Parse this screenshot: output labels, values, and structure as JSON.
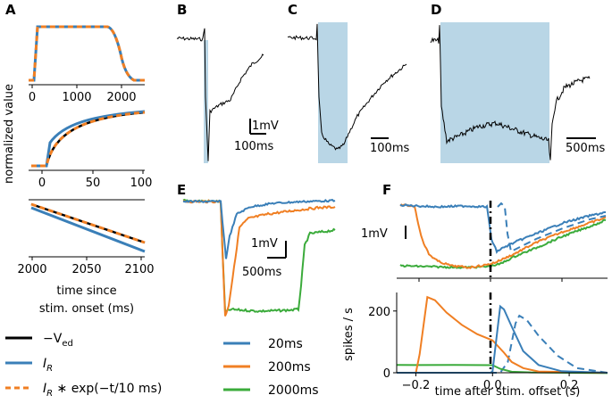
{
  "panel_labels": {
    "A": "A",
    "B": "B",
    "C": "C",
    "D": "D",
    "E": "E",
    "F": "F"
  },
  "colors": {
    "blue": "#3a7fb8",
    "orange": "#f07f23",
    "green": "#3bab3b",
    "shade": "#b9d6e6",
    "black": "#000000"
  },
  "panel_A": {
    "ylabel": "normalized value",
    "xlabel_line1": "time since",
    "xlabel_line2": "stim. onset (ms)",
    "top_ticks": [
      "0",
      "1000",
      "2000"
    ],
    "mid_ticks": [
      "0",
      "50",
      "100"
    ],
    "bot_ticks": [
      "2000",
      "2050",
      "2100"
    ],
    "legend": [
      {
        "label": "−V",
        "sub": "ed",
        "style": "solid",
        "color": "#000000",
        "name": "neg-v-ed"
      },
      {
        "label": "I",
        "sub": "R",
        "style": "solid",
        "color": "#3a7fb8",
        "name": "i-r"
      },
      {
        "label": "I",
        "sub": "R",
        "rest": " ∗ exp(−t/10 ms)",
        "style": "dashed",
        "color": "#f07f23",
        "name": "i-r-exp"
      }
    ]
  },
  "scalebars": {
    "B_mv": "1mV",
    "B_ms": "100ms",
    "C_ms": "100ms",
    "D_ms": "500ms",
    "E_mv": "1mV",
    "E_ms": "500ms",
    "F_mv": "1mV"
  },
  "panel_E": {
    "legend": [
      {
        "label": "20ms",
        "color": "#3a7fb8"
      },
      {
        "label": "200ms",
        "color": "#f07f23"
      },
      {
        "label": "2000ms",
        "color": "#3bab3b"
      }
    ]
  },
  "chart_data": {
    "type": "line",
    "title": "",
    "xlabel": "time after stim. offset (s)",
    "ylabel": "spikes / s",
    "xlim": [
      -0.25,
      0.3
    ],
    "ylim": [
      0,
      260
    ],
    "xticks": [
      "−0.2",
      "0.0",
      "0.2"
    ],
    "yticks": [
      "0",
      "200"
    ],
    "series": [
      {
        "name": "20ms",
        "x": [
          -0.25,
          -0.05,
          -0.005,
          0.0,
          0.01,
          0.02,
          0.03,
          0.05,
          0.08,
          0.12,
          0.18,
          0.3
        ],
        "values": [
          0,
          0,
          0,
          5,
          110,
          215,
          205,
          150,
          70,
          25,
          5,
          0
        ]
      },
      {
        "name": "200ms",
        "x": [
          -0.25,
          -0.2,
          -0.19,
          -0.17,
          -0.15,
          -0.12,
          -0.08,
          -0.04,
          0.0,
          0.03,
          0.05,
          0.08,
          0.12,
          0.3
        ],
        "values": [
          0,
          0,
          60,
          245,
          235,
          195,
          155,
          125,
          105,
          65,
          35,
          15,
          4,
          0
        ]
      },
      {
        "name": "2000ms",
        "x": [
          -0.25,
          -0.2,
          -0.1,
          0.0,
          0.02,
          0.05,
          0.1,
          0.3
        ],
        "values": [
          25,
          25,
          25,
          25,
          12,
          4,
          0,
          0
        ]
      },
      {
        "name": "20ms dashed",
        "x": [
          -0.25,
          0.02,
          0.04,
          0.06,
          0.07,
          0.09,
          0.12,
          0.17,
          0.22,
          0.3
        ],
        "values": [
          0,
          0,
          35,
          160,
          185,
          170,
          120,
          55,
          15,
          0
        ]
      }
    ]
  }
}
